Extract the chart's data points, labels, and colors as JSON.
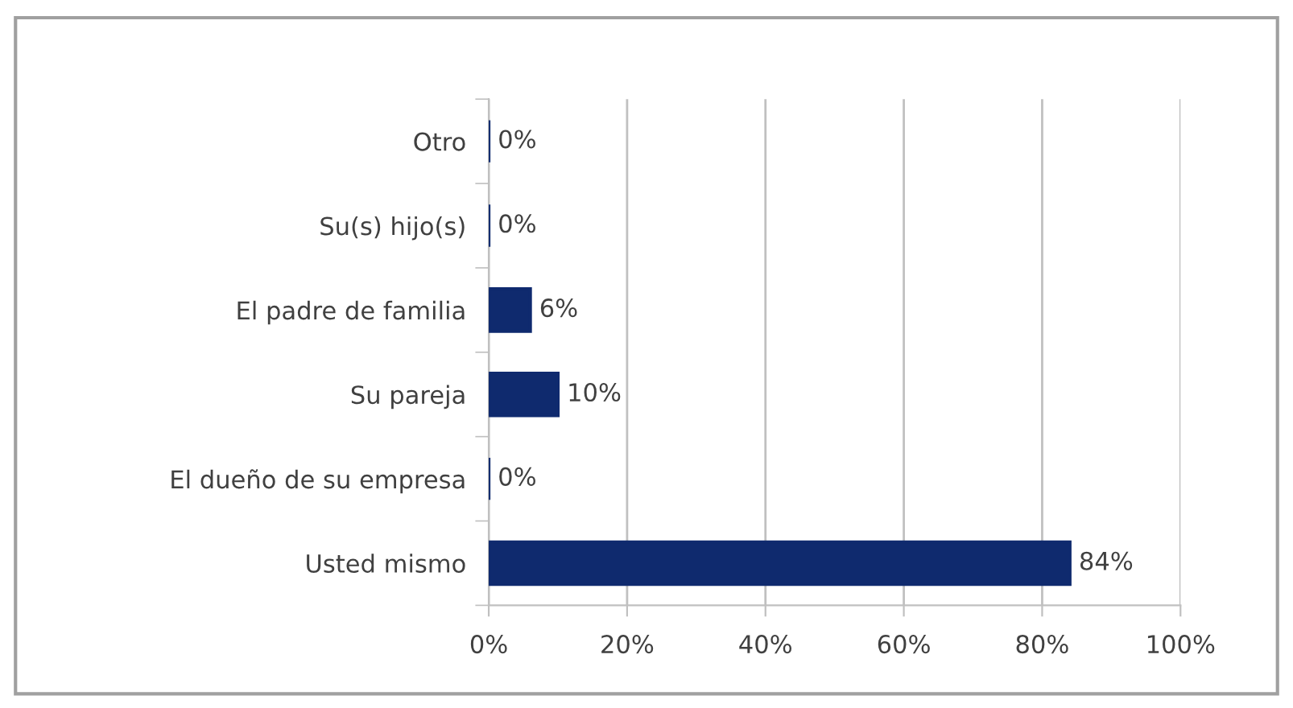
{
  "chart_data": {
    "type": "bar",
    "orientation": "horizontal",
    "categories": [
      "Otro",
      "Su(s) hijo(s)",
      "El padre de familia",
      "Su pareja",
      "El dueño de su empresa",
      "Usted mismo"
    ],
    "values": [
      0,
      0,
      6,
      10,
      0,
      84
    ],
    "color": "#0f2a6e",
    "value_labels": [
      "0%",
      "0%",
      "6%",
      "10%",
      "0%",
      "84%"
    ],
    "xlim": [
      0,
      100
    ],
    "xticks": [
      {
        "value": 0,
        "label": "0%"
      },
      {
        "value": 20,
        "label": "20%"
      },
      {
        "value": 40,
        "label": "40%"
      },
      {
        "value": 60,
        "label": "60%"
      },
      {
        "value": 80,
        "label": "80%"
      },
      {
        "value": 100,
        "label": "100%"
      }
    ],
    "grid": "x",
    "legend": false
  }
}
